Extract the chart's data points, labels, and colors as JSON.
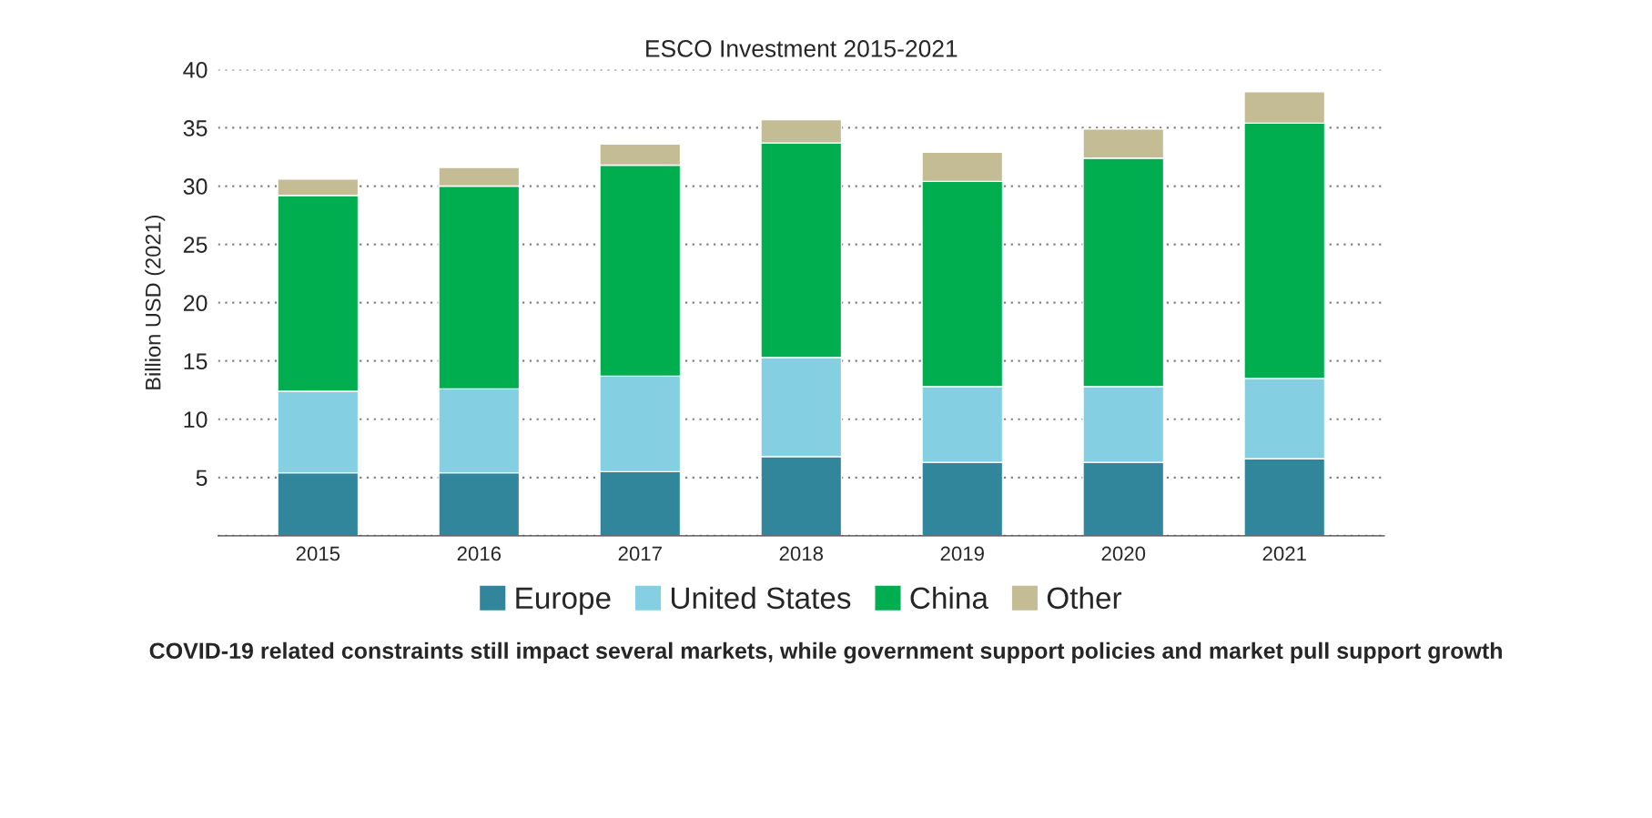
{
  "chart_data": {
    "type": "bar",
    "title": "ESCO Investment 2015-2021",
    "ylabel": "Billion USD (2021)",
    "categories": [
      "2015",
      "2016",
      "2017",
      "2018",
      "2019",
      "2020",
      "2021"
    ],
    "stacked": true,
    "series": [
      {
        "name": "Europe",
        "color": "#32869b",
        "values": [
          5.4,
          5.4,
          5.5,
          6.8,
          6.3,
          6.3,
          6.6
        ]
      },
      {
        "name": "United States",
        "color": "#84cfe2",
        "values": [
          7.0,
          7.2,
          8.2,
          8.5,
          6.5,
          6.5,
          6.9
        ]
      },
      {
        "name": "China",
        "color": "#00ae50",
        "values": [
          16.8,
          17.4,
          18.1,
          18.4,
          17.6,
          19.6,
          21.9
        ]
      },
      {
        "name": "Other",
        "color": "#c4bc95",
        "values": [
          1.4,
          1.6,
          1.8,
          2.0,
          2.5,
          2.5,
          2.7
        ]
      }
    ],
    "ylim": [
      0,
      40
    ],
    "yticks": [
      {
        "value": 0,
        "label": null
      },
      5,
      10,
      15,
      20,
      25,
      30,
      35,
      40
    ],
    "grid": "y",
    "legend": "bottom",
    "annotations": [
      "COVID-19 related constraints still impact several markets, while government support policies and market pull support growth"
    ]
  }
}
